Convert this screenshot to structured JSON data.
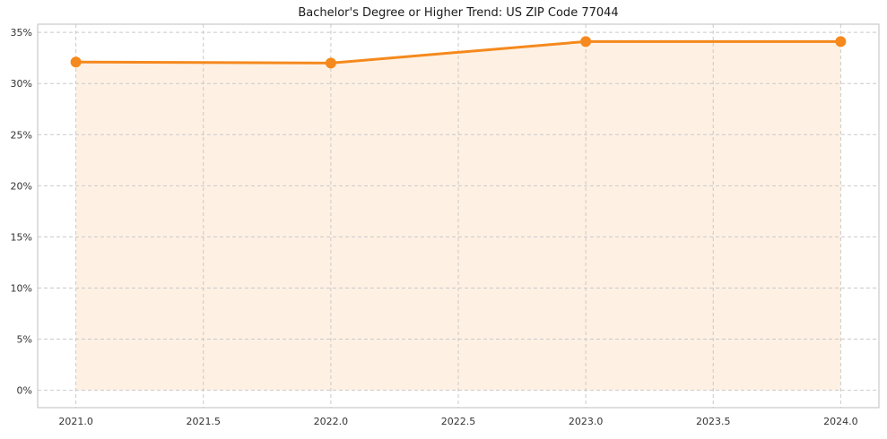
{
  "page": {
    "background": "#ffffff"
  },
  "chart_data": {
    "type": "area",
    "title": "Bachelor's Degree or Higher Trend: US ZIP Code 77044",
    "x": [
      2021,
      2022,
      2023,
      2024
    ],
    "values": [
      32.1,
      32.0,
      34.1,
      34.1
    ],
    "baseline": 0,
    "xlim": [
      2020.85,
      2024.15
    ],
    "ylim": [
      -1.7,
      35.8
    ],
    "x_ticks": [
      2021.0,
      2021.5,
      2022.0,
      2022.5,
      2023.0,
      2023.5,
      2024.0
    ],
    "x_tick_labels": [
      "2021.0",
      "2021.5",
      "2022.0",
      "2022.5",
      "2023.0",
      "2023.5",
      "2024.0"
    ],
    "y_ticks": [
      0,
      5,
      10,
      15,
      20,
      25,
      30,
      35
    ],
    "y_tick_labels": [
      "0%",
      "5%",
      "10%",
      "15%",
      "20%",
      "25%",
      "30%",
      "35%"
    ],
    "xlabel": "",
    "ylabel": "",
    "grid": true,
    "grid_style": "dashed",
    "legend": "none",
    "line_color": "#f5891d",
    "line_width": 3,
    "marker": "circle",
    "marker_size": 6,
    "fill_color": "#f5891d",
    "fill_opacity": 0.12,
    "grid_color": "#c9c9c9",
    "spine_color": "#bfbfbf",
    "tick_label_color": "#333333"
  }
}
